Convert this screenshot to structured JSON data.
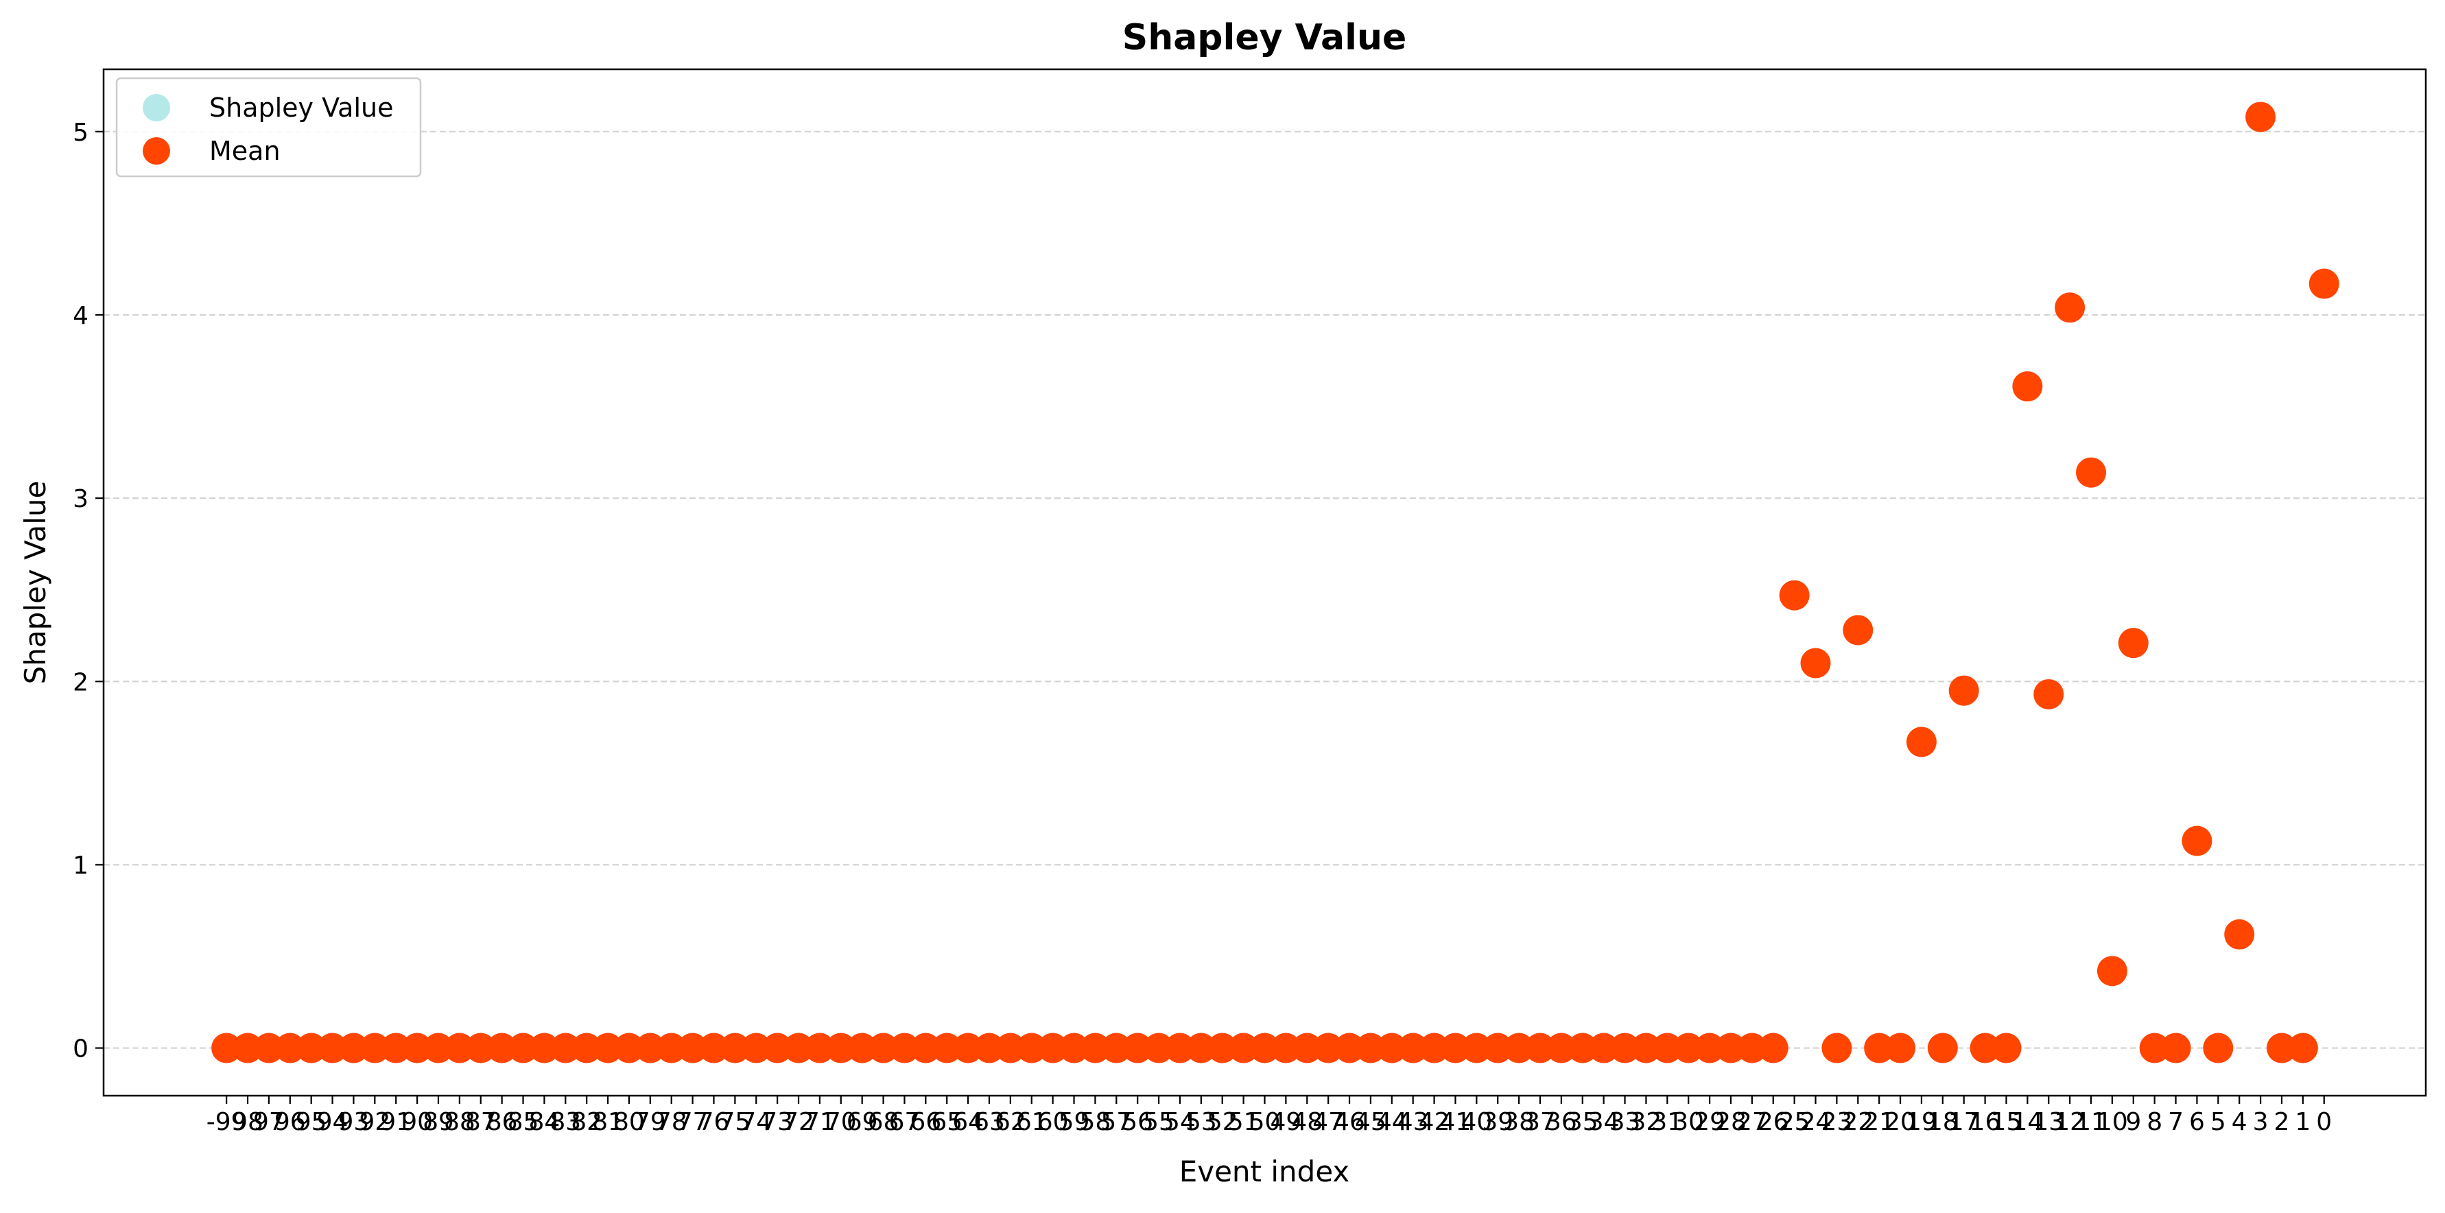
{
  "chart_data": {
    "type": "scatter",
    "title": "Shapley Value",
    "xlabel": "Event index",
    "ylabel": "Shapley Value",
    "xlim": [
      -104.8,
      4.8
    ],
    "ylim": [
      -0.26,
      5.34
    ],
    "x_inverted_labels": true,
    "x": [
      -99,
      -98,
      -97,
      -96,
      -95,
      -94,
      -93,
      -92,
      -91,
      -90,
      -89,
      -88,
      -87,
      -86,
      -85,
      -84,
      -83,
      -82,
      -81,
      -80,
      -79,
      -78,
      -77,
      -76,
      -75,
      -74,
      -73,
      -72,
      -71,
      -70,
      -69,
      -68,
      -67,
      -66,
      -65,
      -64,
      -63,
      -62,
      -61,
      -60,
      -59,
      -58,
      -57,
      -56,
      -55,
      -54,
      -53,
      -52,
      -51,
      -50,
      -49,
      -48,
      -47,
      -46,
      -45,
      -44,
      -43,
      -42,
      -41,
      -40,
      -39,
      -38,
      -37,
      -36,
      -35,
      -34,
      -33,
      -32,
      -31,
      -30,
      -29,
      -28,
      -27,
      -26,
      -25,
      -24,
      -23,
      -22,
      -21,
      -20,
      -19,
      -18,
      -17,
      -16,
      -15,
      -14,
      -13,
      -12,
      -11,
      -10,
      -9,
      -8,
      -7,
      -6,
      -5,
      -4,
      -3,
      -2,
      -1,
      0
    ],
    "xticks": [
      -99,
      -98,
      -97,
      -96,
      -95,
      -94,
      -93,
      -92,
      -91,
      -90,
      -89,
      -88,
      -87,
      -86,
      -85,
      -84,
      -83,
      -82,
      -81,
      -80,
      -79,
      -78,
      -77,
      -76,
      -75,
      -74,
      -73,
      -72,
      -71,
      -70,
      -69,
      -68,
      -67,
      -66,
      -65,
      -64,
      -63,
      -62,
      -61,
      -60,
      -59,
      -58,
      -57,
      -56,
      -55,
      -54,
      -53,
      -52,
      -51,
      -50,
      -49,
      -48,
      -47,
      -46,
      -45,
      -44,
      -43,
      -42,
      -41,
      -40,
      -39,
      -38,
      -37,
      -36,
      -35,
      -34,
      -33,
      -32,
      -31,
      -30,
      -29,
      -28,
      -27,
      -26,
      -25,
      -24,
      -23,
      -22,
      -21,
      -20,
      -19,
      -18,
      -17,
      -16,
      -15,
      -14,
      -13,
      -12,
      -11,
      -10,
      -9,
      -8,
      -7,
      -6,
      -5,
      -4,
      -3,
      -2,
      -1,
      0
    ],
    "xtick_labels": [
      "-99",
      "98",
      "97",
      "96",
      "95",
      "94",
      "93",
      "92",
      "91",
      "90",
      "89",
      "88",
      "87",
      "86",
      "85",
      "84",
      "83",
      "82",
      "81",
      "80",
      "79",
      "78",
      "77",
      "76",
      "75",
      "74",
      "73",
      "72",
      "71",
      "70",
      "69",
      "68",
      "67",
      "66",
      "65",
      "64",
      "63",
      "62",
      "61",
      "60",
      "59",
      "58",
      "57",
      "56",
      "55",
      "54",
      "53",
      "52",
      "51",
      "50",
      "49",
      "48",
      "47",
      "46",
      "45",
      "44",
      "43",
      "42",
      "41",
      "40",
      "39",
      "38",
      "37",
      "36",
      "35",
      "34",
      "33",
      "32",
      "31",
      "30",
      "29",
      "28",
      "27",
      "26",
      "25",
      "24",
      "23",
      "22",
      "21",
      "20",
      "19",
      "18",
      "17",
      "16",
      "15",
      "14",
      "13",
      "12",
      "11",
      "10",
      "9",
      "8",
      "7",
      "6",
      "5",
      "4",
      "3",
      "2",
      "1",
      "0"
    ],
    "yticks": [
      0,
      1,
      2,
      3,
      4,
      5
    ],
    "ytick_labels": [
      "0",
      "1",
      "2",
      "3",
      "4",
      "5"
    ],
    "grid": "y-dashed",
    "legend_position": "top-left",
    "series": [
      {
        "name": "Shapley Value",
        "color": "#b5e8e8",
        "values": []
      },
      {
        "name": "Mean",
        "color": "#ff4500",
        "values": [
          0,
          0,
          0,
          0,
          0,
          0,
          0,
          0,
          0,
          0,
          0,
          0,
          0,
          0,
          0,
          0,
          0,
          0,
          0,
          0,
          0,
          0,
          0,
          0,
          0,
          0,
          0,
          0,
          0,
          0,
          0,
          0,
          0,
          0,
          0,
          0,
          0,
          0,
          0,
          0,
          0,
          0,
          0,
          0,
          0,
          0,
          0,
          0,
          0,
          0,
          0,
          0,
          0,
          0,
          0,
          0,
          0,
          0,
          0,
          0,
          0,
          0,
          0,
          0,
          0,
          0,
          0,
          0,
          0,
          0,
          0,
          0,
          0,
          0,
          2.47,
          2.1,
          0,
          2.28,
          0,
          0,
          1.67,
          0,
          1.95,
          0,
          0,
          3.61,
          1.93,
          4.04,
          3.14,
          0.42,
          2.21,
          0,
          0,
          1.13,
          0,
          0.62,
          5.08,
          0,
          0,
          4.17
        ]
      }
    ]
  }
}
